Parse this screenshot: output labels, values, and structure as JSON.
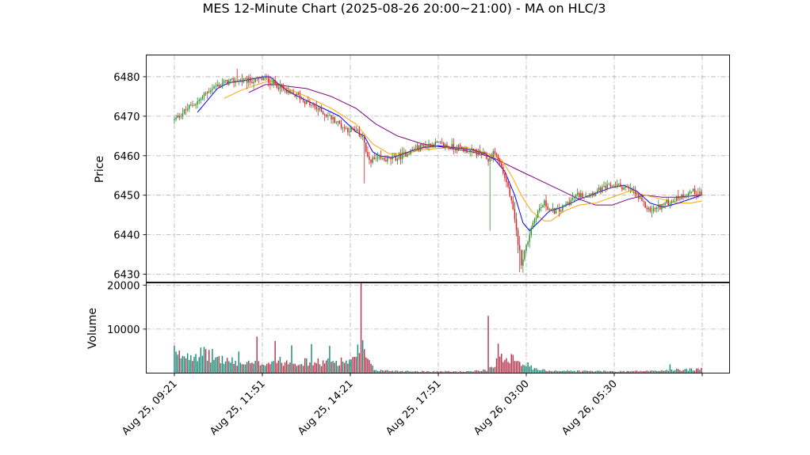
{
  "chart_data": {
    "type": "candlestick",
    "title": "MES 12-Minute Chart (2025-08-26 20:00~21:00) - MA on HLC/3",
    "price_panel": {
      "ylabel": "Price",
      "ylim": [
        6428,
        6485.5
      ],
      "yticks": [
        "6430",
        "6440",
        "6450",
        "6460",
        "6470",
        "6480"
      ]
    },
    "volume_panel": {
      "ylabel": "Volume",
      "ylim": [
        0,
        20500
      ],
      "yticks": [
        "10000",
        "20000"
      ]
    },
    "xticks": [
      "Aug 25, 09:21",
      "Aug 25, 11:51",
      "Aug 25, 14:21",
      "Aug 25, 17:51",
      "Aug 26, 03:00",
      "Aug 26, 05:30"
    ],
    "grid": true,
    "colors": {
      "up": "#2e8b2e",
      "down": "#dd2222",
      "volume_up": "#1f8a7a",
      "volume_down": "#b5384f",
      "ma_fast": "#0000ff",
      "ma_mid": "#ffa500",
      "ma_slow": "#800080"
    },
    "close_path": [
      [
        0,
        6469
      ],
      [
        8,
        6472
      ],
      [
        15,
        6474
      ],
      [
        22,
        6477
      ],
      [
        30,
        6478.5
      ],
      [
        38,
        6479
      ],
      [
        48,
        6479
      ],
      [
        55,
        6479.5
      ],
      [
        62,
        6478
      ],
      [
        68,
        6476
      ],
      [
        75,
        6475
      ],
      [
        82,
        6473
      ],
      [
        90,
        6471
      ],
      [
        97,
        6469
      ],
      [
        103,
        6467
      ],
      [
        110,
        6466
      ],
      [
        114,
        6465
      ],
      [
        117,
        6459
      ],
      [
        121,
        6459
      ],
      [
        128,
        6459
      ],
      [
        135,
        6459.5
      ],
      [
        142,
        6461
      ],
      [
        150,
        6462.5
      ],
      [
        158,
        6463
      ],
      [
        165,
        6462.5
      ],
      [
        172,
        6462
      ],
      [
        180,
        6461
      ],
      [
        186,
        6460.5
      ],
      [
        190,
        6459
      ],
      [
        194,
        6461
      ],
      [
        198,
        6457
      ],
      [
        202,
        6452
      ],
      [
        205,
        6446
      ],
      [
        208,
        6438
      ],
      [
        210,
        6433
      ],
      [
        213,
        6437
      ],
      [
        216,
        6442
      ],
      [
        220,
        6446
      ],
      [
        224,
        6448
      ],
      [
        228,
        6446
      ],
      [
        233,
        6446
      ],
      [
        238,
        6448
      ],
      [
        244,
        6450
      ],
      [
        250,
        6450
      ],
      [
        256,
        6451
      ],
      [
        262,
        6452
      ],
      [
        268,
        6452.5
      ],
      [
        272,
        6452
      ],
      [
        278,
        6451
      ],
      [
        283,
        6448
      ],
      [
        288,
        6446
      ],
      [
        293,
        6447
      ],
      [
        298,
        6448
      ],
      [
        303,
        6449
      ],
      [
        308,
        6450
      ],
      [
        313,
        6451
      ],
      [
        319,
        6450.5
      ]
    ],
    "volume_profile": [
      [
        0,
        3800
      ],
      [
        10,
        4500
      ],
      [
        20,
        4200
      ],
      [
        30,
        3000
      ],
      [
        40,
        2200
      ],
      [
        50,
        2100
      ],
      [
        60,
        2700
      ],
      [
        70,
        2600
      ],
      [
        80,
        2500
      ],
      [
        90,
        2400
      ],
      [
        100,
        2700
      ],
      [
        110,
        2800
      ],
      [
        114,
        5000
      ],
      [
        118,
        2200
      ],
      [
        121,
        800
      ],
      [
        125,
        600
      ],
      [
        135,
        500
      ],
      [
        150,
        400
      ],
      [
        180,
        350
      ],
      [
        190,
        800
      ],
      [
        196,
        3000
      ],
      [
        205,
        4000
      ],
      [
        210,
        2500
      ],
      [
        214,
        1800
      ],
      [
        218,
        900
      ],
      [
        225,
        600
      ],
      [
        240,
        500
      ],
      [
        270,
        400
      ],
      [
        290,
        500
      ],
      [
        300,
        700
      ],
      [
        319,
        900
      ]
    ],
    "volume_spikes": [
      [
        0,
        6200
      ],
      [
        16,
        5800
      ],
      [
        23,
        5500
      ],
      [
        39,
        4900
      ],
      [
        50,
        8300
      ],
      [
        61,
        7300
      ],
      [
        71,
        6300
      ],
      [
        83,
        6600
      ],
      [
        94,
        6200
      ],
      [
        111,
        6500
      ],
      [
        113,
        20500
      ],
      [
        114,
        7500
      ],
      [
        190,
        13000
      ],
      [
        196,
        6700
      ],
      [
        198,
        4400
      ],
      [
        300,
        2000
      ],
      [
        319,
        1200
      ]
    ],
    "ma_fast_path": [
      [
        14,
        6471
      ],
      [
        20,
        6474
      ],
      [
        26,
        6477
      ],
      [
        33,
        6478.5
      ],
      [
        42,
        6479
      ],
      [
        54,
        6480
      ],
      [
        58,
        6480
      ],
      [
        62,
        6478.5
      ],
      [
        70,
        6476
      ],
      [
        80,
        6474
      ],
      [
        90,
        6472
      ],
      [
        100,
        6470
      ],
      [
        110,
        6466
      ],
      [
        115,
        6465
      ],
      [
        120,
        6461
      ],
      [
        124,
        6460
      ],
      [
        132,
        6459.5
      ],
      [
        142,
        6461
      ],
      [
        150,
        6462
      ],
      [
        160,
        6462.5
      ],
      [
        170,
        6462
      ],
      [
        180,
        6461.5
      ],
      [
        188,
        6460.5
      ],
      [
        194,
        6459
      ],
      [
        200,
        6456
      ],
      [
        206,
        6450
      ],
      [
        211,
        6443
      ],
      [
        215,
        6441
      ],
      [
        220,
        6443
      ],
      [
        227,
        6446
      ],
      [
        235,
        6447
      ],
      [
        245,
        6449
      ],
      [
        255,
        6450.5
      ],
      [
        265,
        6452
      ],
      [
        272,
        6452.5
      ],
      [
        280,
        6451
      ],
      [
        288,
        6448
      ],
      [
        296,
        6447
      ],
      [
        305,
        6448
      ],
      [
        312,
        6449
      ],
      [
        319,
        6450
      ]
    ],
    "ma_mid_path": [
      [
        30,
        6474.5
      ],
      [
        40,
        6476.5
      ],
      [
        50,
        6478
      ],
      [
        58,
        6479
      ],
      [
        66,
        6477.5
      ],
      [
        80,
        6475
      ],
      [
        95,
        6472
      ],
      [
        110,
        6468
      ],
      [
        120,
        6463
      ],
      [
        130,
        6460.5
      ],
      [
        140,
        6460.5
      ],
      [
        150,
        6461.5
      ],
      [
        165,
        6462
      ],
      [
        178,
        6462
      ],
      [
        190,
        6460.5
      ],
      [
        198,
        6459
      ],
      [
        204,
        6455
      ],
      [
        210,
        6450
      ],
      [
        216,
        6446
      ],
      [
        224,
        6443.5
      ],
      [
        228,
        6443.5
      ],
      [
        236,
        6446
      ],
      [
        245,
        6447.5
      ],
      [
        255,
        6448
      ],
      [
        265,
        6449.5
      ],
      [
        275,
        6451
      ],
      [
        285,
        6450
      ],
      [
        295,
        6449
      ],
      [
        305,
        6448
      ],
      [
        312,
        6448
      ],
      [
        319,
        6448.5
      ]
    ],
    "ma_slow_path": [
      [
        45,
        6476
      ],
      [
        55,
        6478
      ],
      [
        62,
        6478
      ],
      [
        70,
        6477.5
      ],
      [
        80,
        6477
      ],
      [
        95,
        6475
      ],
      [
        110,
        6472
      ],
      [
        122,
        6468
      ],
      [
        135,
        6465
      ],
      [
        150,
        6463
      ],
      [
        165,
        6462
      ],
      [
        180,
        6461
      ],
      [
        193,
        6459.5
      ],
      [
        205,
        6457
      ],
      [
        215,
        6455
      ],
      [
        225,
        6453
      ],
      [
        235,
        6451
      ],
      [
        245,
        6449
      ],
      [
        255,
        6447.5
      ],
      [
        265,
        6447.5
      ],
      [
        275,
        6449
      ],
      [
        285,
        6450
      ],
      [
        295,
        6449.5
      ],
      [
        305,
        6449.5
      ],
      [
        319,
        6450
      ]
    ]
  }
}
